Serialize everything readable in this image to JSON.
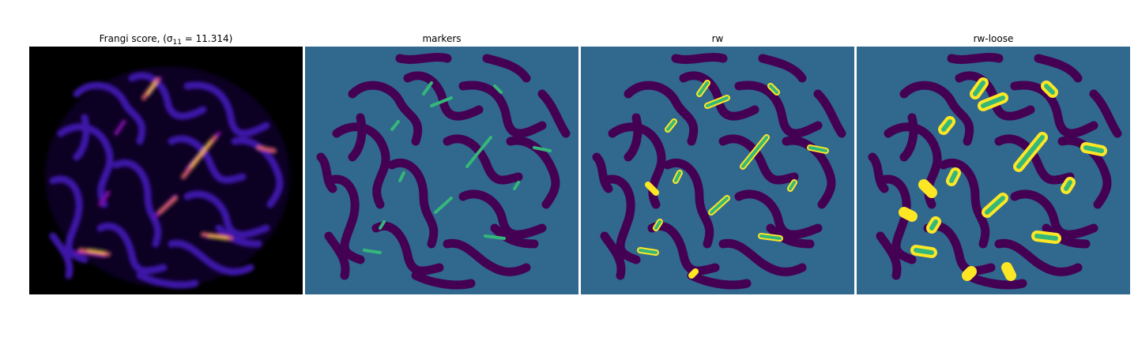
{
  "figure": {
    "panels": [
      {
        "id": "frangi",
        "title": "Frangi score, (σ",
        "title_sub": "11",
        "title_tail": " = 11.314)"
      },
      {
        "id": "markers",
        "title": "markers"
      },
      {
        "id": "rw",
        "title": "rw"
      },
      {
        "id": "rw-loose",
        "title": "rw-loose"
      }
    ]
  },
  "colors": {
    "background_teal": "#31688e",
    "tissue_purple": "#440154",
    "marker_green": "#35b779",
    "segment_yellow": "#fde725",
    "frangi_black": "#000000",
    "frangi_blue": "#2a0f8a",
    "frangi_orange": "#f89540",
    "frangi_yellow": "#f0f921"
  }
}
